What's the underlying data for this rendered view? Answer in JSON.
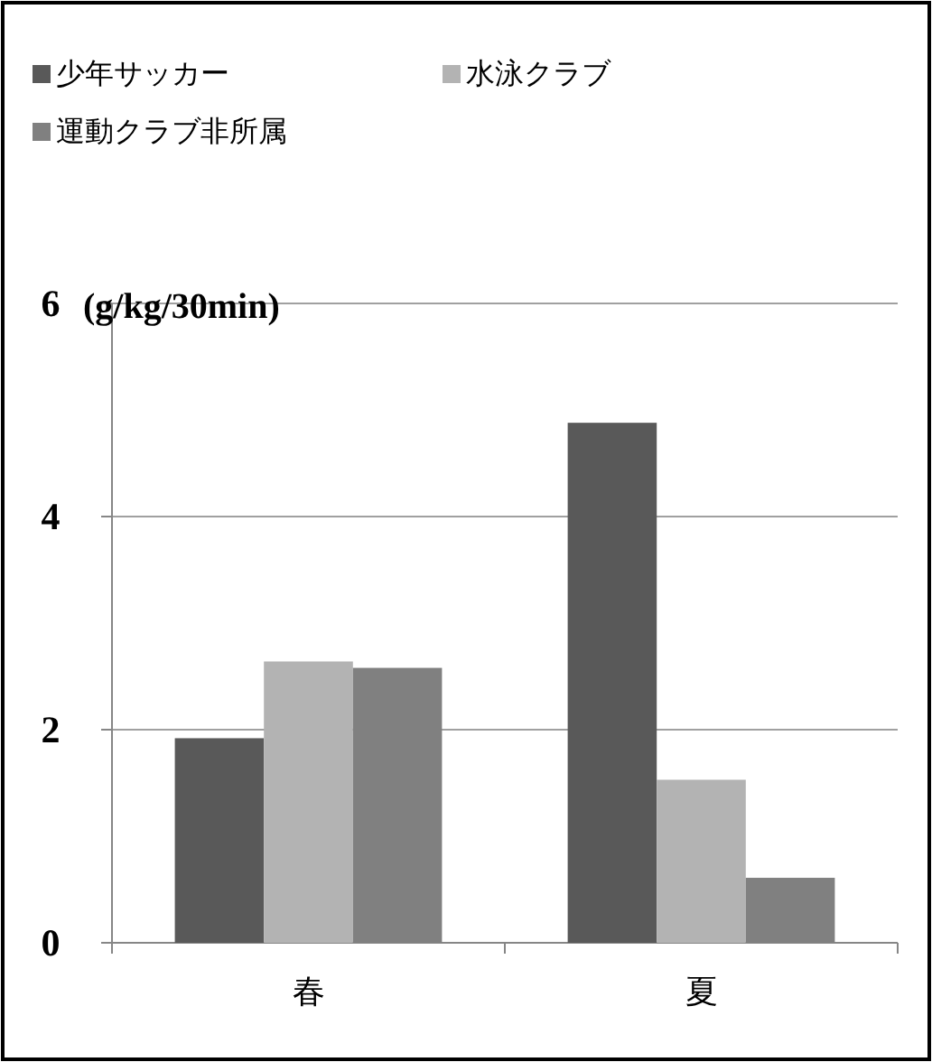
{
  "chart_data": {
    "type": "bar",
    "ylabel": "(g/kg/30min)",
    "categories": [
      "春",
      "夏"
    ],
    "series": [
      {
        "name": "少年サッカー",
        "color": "#595959",
        "values": [
          1.92,
          4.88
        ]
      },
      {
        "name": "水泳クラブ",
        "color": "#b3b3b3",
        "values": [
          2.64,
          1.53
        ]
      },
      {
        "name": "運動クラブ非所属",
        "color": "#808080",
        "values": [
          2.58,
          0.61
        ]
      }
    ],
    "ylim": [
      0,
      6
    ],
    "yticks": [
      0,
      2,
      4,
      6
    ],
    "grid": "y",
    "legend": "top left"
  }
}
